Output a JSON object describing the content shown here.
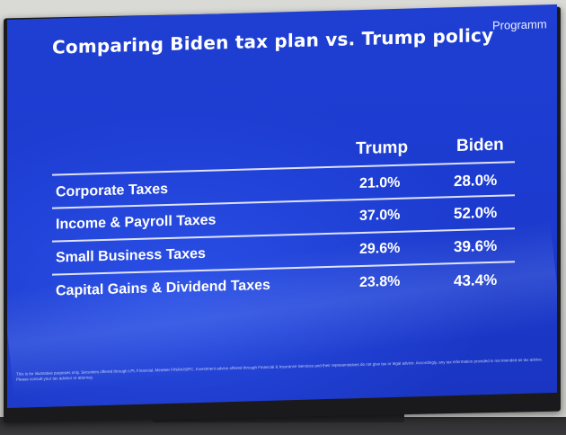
{
  "slide": {
    "title": "Comparing Biden tax plan vs. Trump policy",
    "logo_text": "Programm",
    "columns": [
      "Trump",
      "Biden"
    ],
    "rows": [
      {
        "label": "Corporate Taxes",
        "trump": "21.0%",
        "biden": "28.0%"
      },
      {
        "label": "Income & Payroll Taxes",
        "trump": "37.0%",
        "biden": "52.0%"
      },
      {
        "label": "Small Business Taxes",
        "trump": "29.6%",
        "biden": "39.6%"
      },
      {
        "label": "Capital Gains & Dividend Taxes",
        "trump": "23.8%",
        "biden": "43.4%"
      }
    ],
    "disclaimer": "This is for illustrative purposes only. Securities offered through LPL Financial, Member FINRA/SIPC. Investment advice offered through Financial & Insurance Services and their representatives do not give tax or legal advice. Accordingly, any tax information provided is not intended as tax advice. Please consult your tax advisor or attorney."
  },
  "colors": {
    "screen_blue": "#1f3fd3",
    "text": "#ffffff",
    "frame": "#1a1a1c"
  }
}
